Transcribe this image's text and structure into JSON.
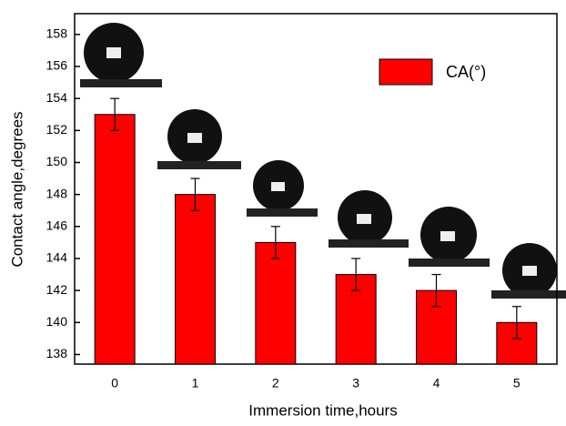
{
  "chart_data": {
    "type": "bar",
    "x_label": "Immersion time,hours",
    "y_label": "Contact angle,degrees",
    "categories": [
      "0",
      "1",
      "2",
      "3",
      "4",
      "5"
    ],
    "series": [
      {
        "name": "CA(°)",
        "color": "#ff0000",
        "values": [
          153,
          148,
          145,
          143,
          142,
          140
        ],
        "errors": [
          1,
          1,
          1,
          1,
          1,
          1
        ]
      }
    ],
    "ylim": [
      137.4,
      159.3
    ],
    "yticks": [
      138,
      140,
      142,
      144,
      146,
      148,
      150,
      152,
      154,
      156,
      158
    ],
    "legend": "upper-right"
  }
}
